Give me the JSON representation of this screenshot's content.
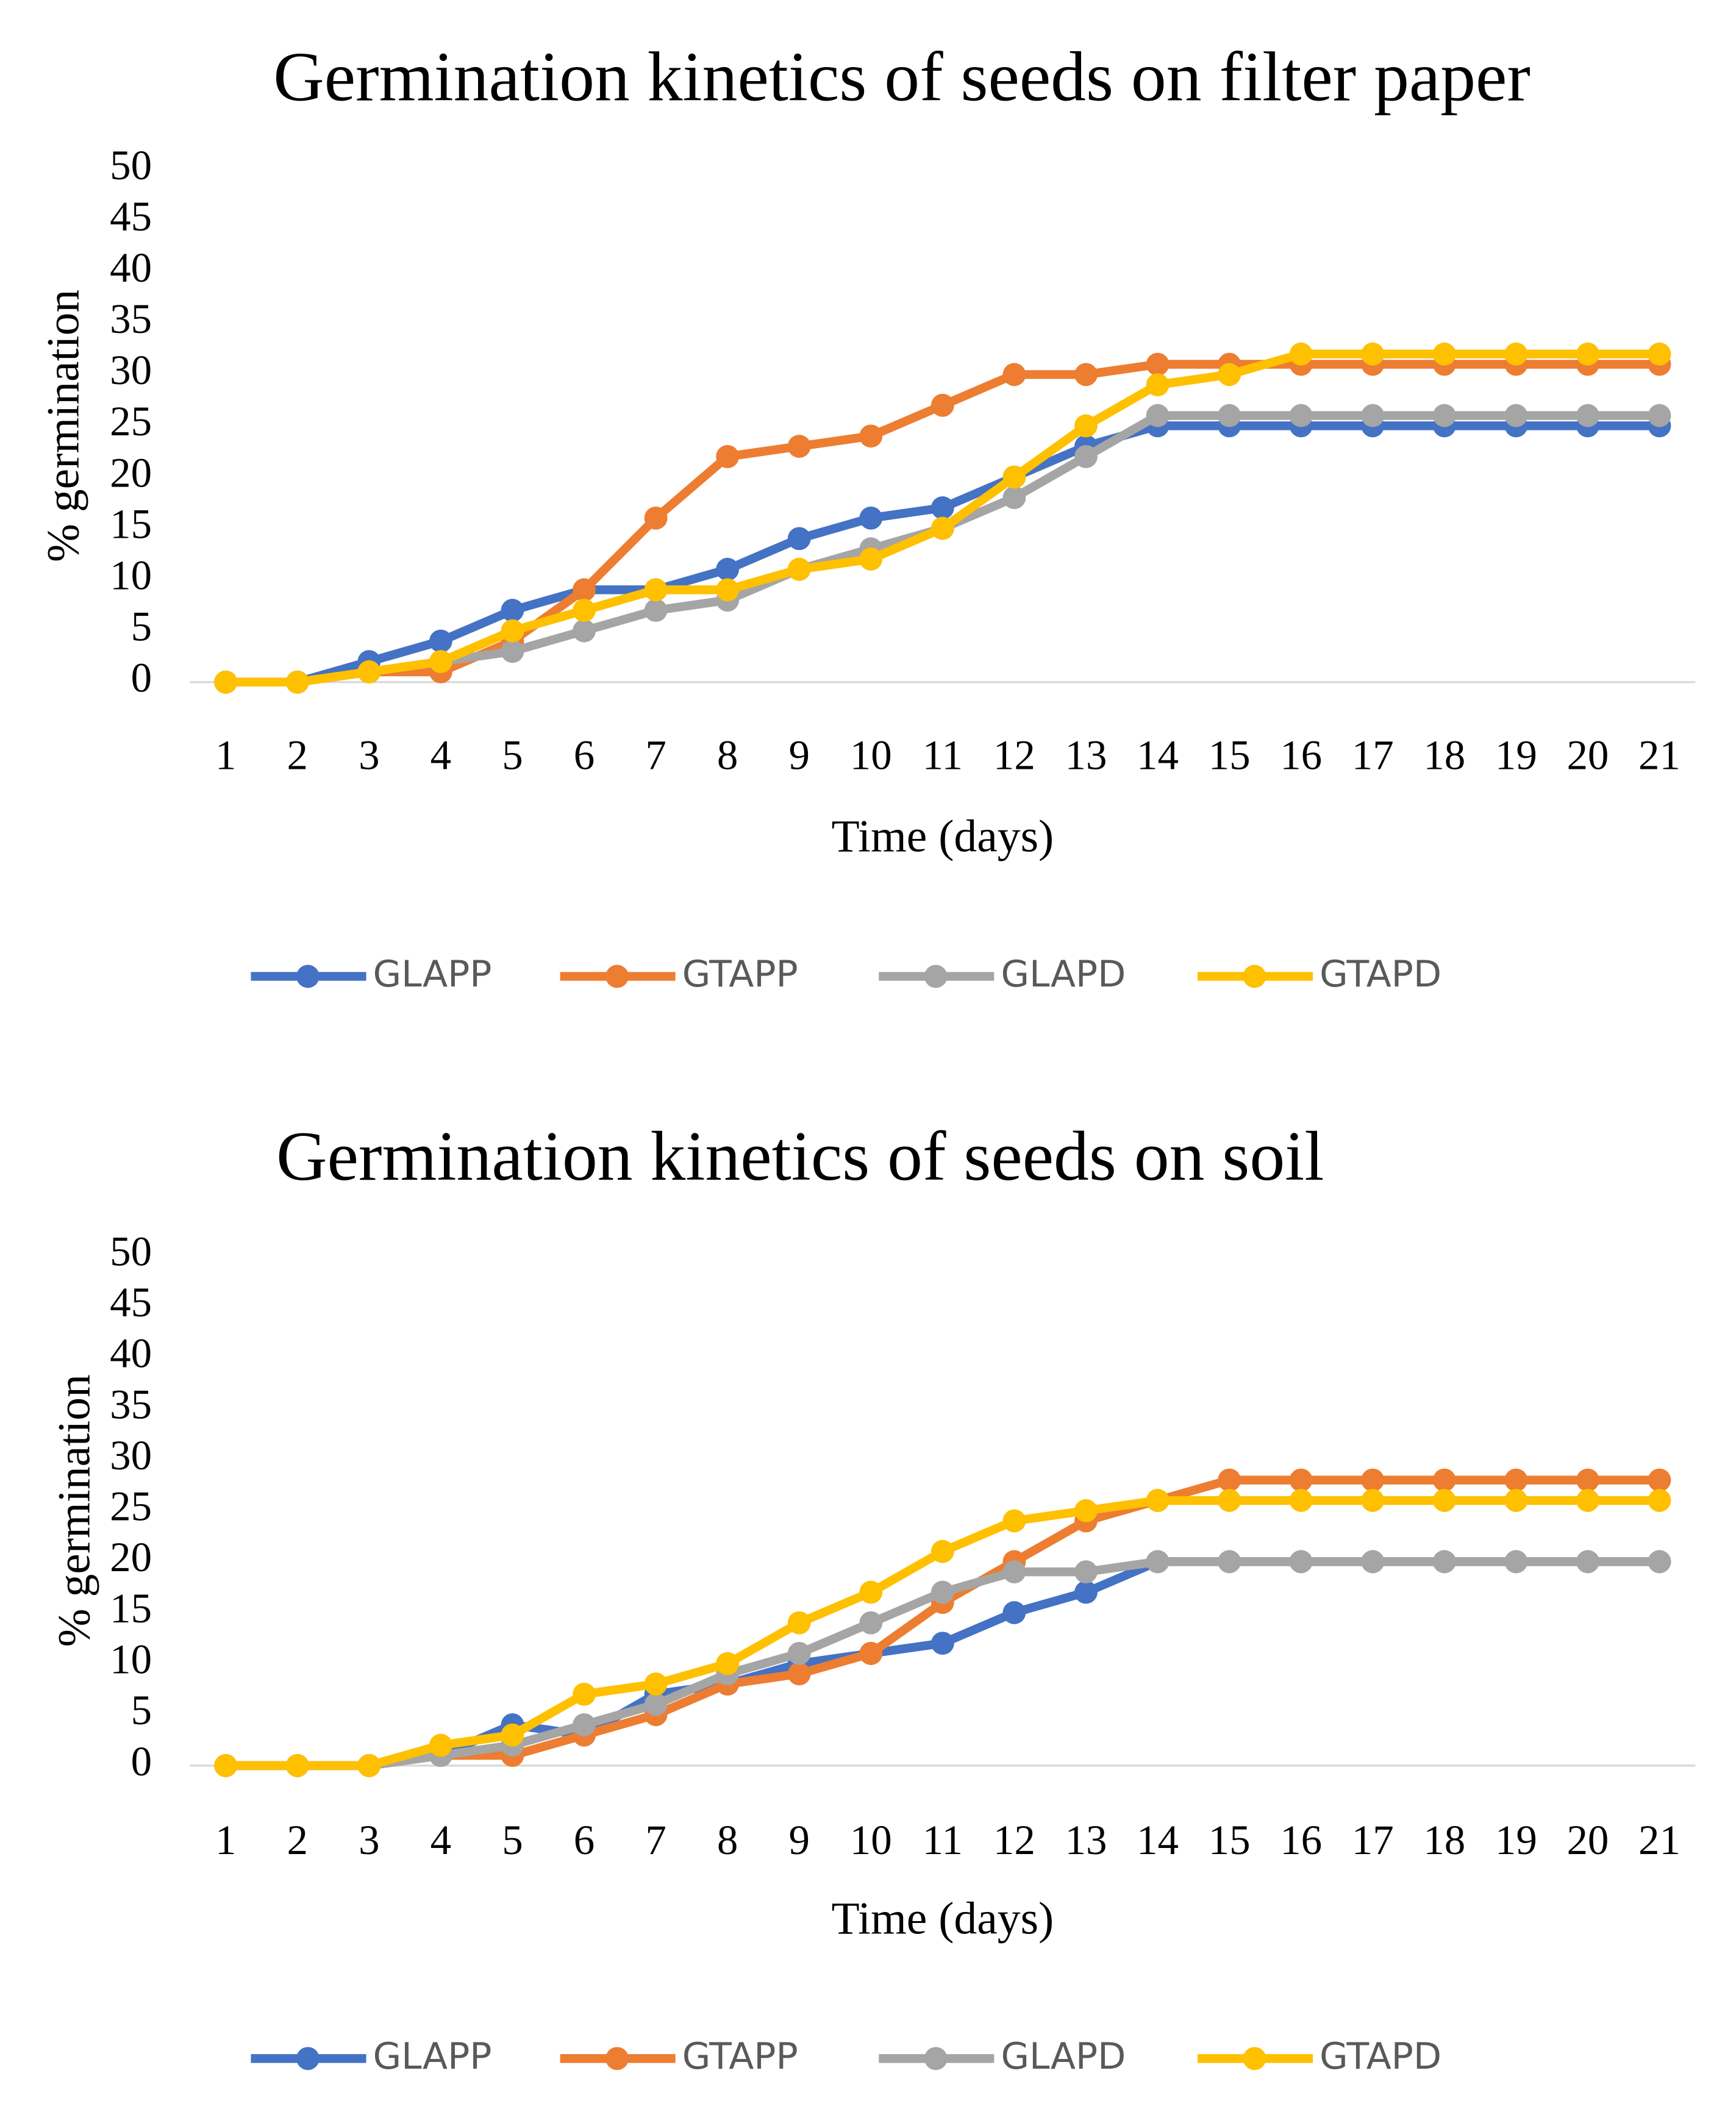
{
  "chart_data": [
    {
      "type": "line",
      "title": "Germination kinetics of seeds on filter paper",
      "xlabel": "Time (days)",
      "ylabel": "% germination",
      "categories": [
        "1",
        "2",
        "3",
        "4",
        "5",
        "6",
        "7",
        "8",
        "9",
        "10",
        "11",
        "12",
        "13",
        "14",
        "15",
        "16",
        "17",
        "18",
        "19",
        "20",
        "21"
      ],
      "yticks": [
        "0",
        "5",
        "10",
        "15",
        "20",
        "25",
        "30",
        "35",
        "40",
        "45",
        "50"
      ],
      "ylim": [
        0,
        50
      ],
      "grid": false,
      "legend": "bottom",
      "series": [
        {
          "name": "GLAPP",
          "color": "#4472C4",
          "values": [
            0,
            0,
            2,
            4,
            7,
            9,
            9,
            11,
            14,
            16,
            17,
            20,
            23,
            25,
            25,
            25,
            25,
            25,
            25,
            25,
            25
          ]
        },
        {
          "name": "GTAPP",
          "color": "#ED7D31",
          "values": [
            0,
            0,
            1,
            1,
            4,
            9,
            16,
            22,
            23,
            24,
            27,
            30,
            30,
            31,
            31,
            31,
            31,
            31,
            31,
            31,
            31
          ]
        },
        {
          "name": "GLAPD",
          "color": "#A5A5A5",
          "values": [
            0,
            0,
            1,
            2,
            3,
            5,
            7,
            8,
            11,
            13,
            15,
            18,
            22,
            26,
            26,
            26,
            26,
            26,
            26,
            26,
            26
          ]
        },
        {
          "name": "GTAPD",
          "color": "#FFC000",
          "values": [
            0,
            0,
            1,
            2,
            5,
            7,
            9,
            9,
            11,
            12,
            15,
            20,
            25,
            29,
            30,
            32,
            32,
            32,
            32,
            32,
            32
          ]
        }
      ]
    },
    {
      "type": "line",
      "title": "Germination kinetics of seeds on soil",
      "xlabel": "Time (days)",
      "ylabel": "% germination",
      "categories": [
        "1",
        "2",
        "3",
        "4",
        "5",
        "6",
        "7",
        "8",
        "9",
        "10",
        "11",
        "12",
        "13",
        "14",
        "15",
        "16",
        "17",
        "18",
        "19",
        "20",
        "21"
      ],
      "yticks": [
        "0",
        "5",
        "10",
        "15",
        "20",
        "25",
        "30",
        "35",
        "40",
        "45",
        "50"
      ],
      "ylim": [
        0,
        50
      ],
      "grid": false,
      "legend": "bottom",
      "series": [
        {
          "name": "GLAPP",
          "color": "#4472C4",
          "values": [
            0,
            0,
            0,
            1,
            4,
            3,
            7,
            8,
            10,
            11,
            12,
            15,
            17,
            20,
            20,
            20,
            20,
            20,
            20,
            20,
            20
          ]
        },
        {
          "name": "GTAPP",
          "color": "#ED7D31",
          "values": [
            0,
            0,
            0,
            1,
            1,
            3,
            5,
            8,
            9,
            11,
            16,
            20,
            24,
            26,
            28,
            28,
            28,
            28,
            28,
            28,
            28
          ]
        },
        {
          "name": "GLAPD",
          "color": "#A5A5A5",
          "values": [
            0,
            0,
            0,
            1,
            2,
            4,
            6,
            9,
            11,
            14,
            17,
            19,
            19,
            20,
            20,
            20,
            20,
            20,
            20,
            20,
            20
          ]
        },
        {
          "name": "GTAPD",
          "color": "#FFC000",
          "values": [
            0,
            0,
            0,
            2,
            3,
            7,
            8,
            10,
            14,
            17,
            21,
            24,
            25,
            26,
            26,
            26,
            26,
            26,
            26,
            26,
            26
          ]
        }
      ]
    }
  ]
}
